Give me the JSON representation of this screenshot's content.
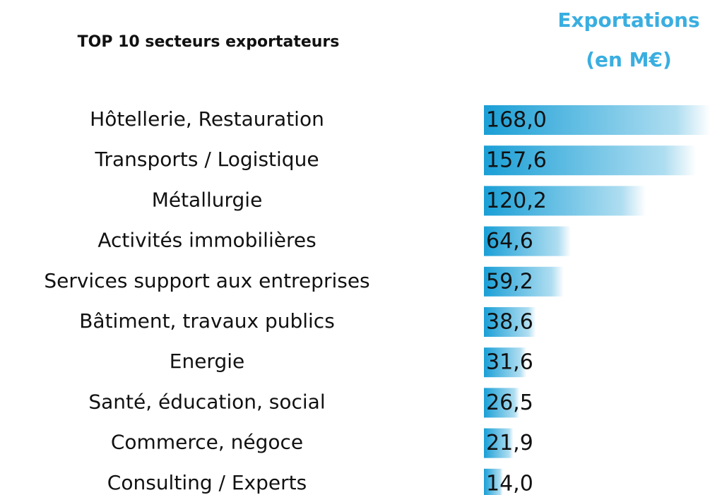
{
  "chart_data": {
    "type": "bar",
    "orientation": "horizontal",
    "title": "TOP 10 secteurs exportateurs",
    "value_header": [
      "Exportations",
      "(en M€)"
    ],
    "categories": [
      "Hôtellerie, Restauration",
      "Transports / Logistique",
      "Métallurgie",
      "Activités immobilières",
      "Services support aux entreprises",
      "Bâtiment, travaux publics",
      "Energie",
      "Santé, éducation, social",
      "Commerce, négoce",
      "Consulting / Experts"
    ],
    "values": [
      168.0,
      157.6,
      120.2,
      64.6,
      59.2,
      38.6,
      31.6,
      26.5,
      21.9,
      14.0
    ],
    "value_labels": [
      "168,0",
      "157,6",
      "120,2",
      "64,6",
      "59,2",
      "38,6",
      "31,6",
      "26,5",
      "21,9",
      "14,0"
    ],
    "color": "#1a9fd6",
    "xlim": [
      0,
      168
    ]
  }
}
